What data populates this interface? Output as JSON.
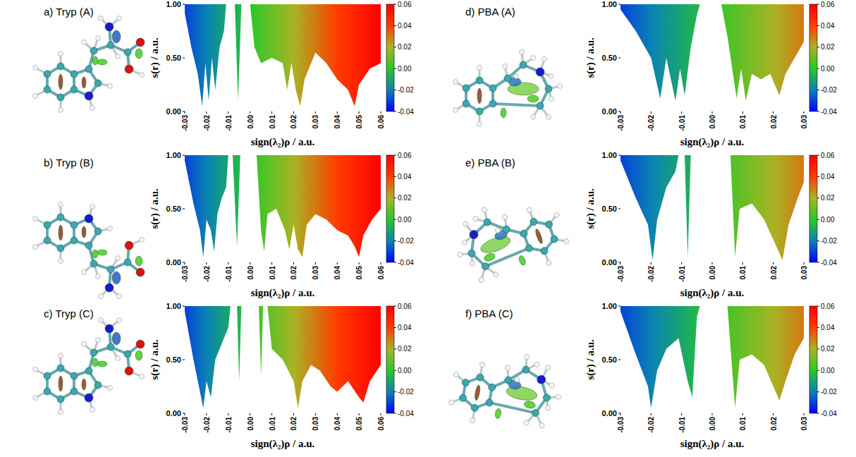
{
  "chart_data": [
    {
      "type": "area",
      "title": "a) Tryp (A)",
      "x_label": "sign(λ₂)ρ / a.u.",
      "y_label": "s(r) / a.u.",
      "x": [
        -0.03,
        -0.027,
        -0.024,
        -0.022,
        -0.0205,
        -0.019,
        -0.0175,
        -0.016,
        -0.014,
        -0.012,
        -0.011,
        -0.007,
        -0.0055,
        -0.004,
        0.0,
        0.002,
        0.005,
        0.01,
        0.015,
        0.017,
        0.019,
        0.021,
        0.023,
        0.025,
        0.03,
        0.035,
        0.04,
        0.045,
        0.048,
        0.05,
        0.055,
        0.06
      ],
      "values": [
        0.92,
        0.6,
        0.35,
        0.05,
        0.45,
        0.1,
        0.5,
        0.2,
        0.6,
        0.75,
        1.0,
        1.0,
        0.1,
        1.0,
        1.0,
        0.6,
        0.45,
        0.5,
        0.45,
        0.2,
        0.45,
        0.2,
        0.05,
        0.3,
        0.55,
        0.45,
        0.3,
        0.2,
        0.05,
        0.25,
        0.4,
        0.45
      ],
      "xlim": [
        -0.03,
        0.06
      ],
      "xticks": [
        -0.03,
        -0.02,
        -0.01,
        {
          "value": 0,
          "label": "0.00"
        },
        0.01,
        0.02,
        0.03,
        0.04,
        0.05,
        0.06
      ],
      "ylim": [
        0,
        1
      ],
      "yticks": [
        {
          "value": 0,
          "label": "0.00"
        },
        {
          "value": 0.5,
          "label": "0.50"
        },
        {
          "value": 1,
          "label": "1.00"
        }
      ],
      "colorbar": {
        "range": [
          -0.04,
          0.06
        ],
        "ticks": [
          -0.04,
          -0.02,
          {
            "value": 0,
            "label": "0.00"
          },
          0.02,
          0.04,
          0.06
        ]
      }
    },
    {
      "type": "area",
      "title": "b) Tryp (B)",
      "x_label": "sign(λ₂)ρ / a.u.",
      "y_label": "s(r) / a.u.",
      "x": [
        -0.03,
        -0.026,
        -0.023,
        -0.0215,
        -0.02,
        -0.018,
        -0.0165,
        -0.015,
        -0.013,
        -0.011,
        -0.01,
        -0.008,
        -0.006,
        -0.0045,
        0.003,
        0.005,
        0.0065,
        0.008,
        0.012,
        0.016,
        0.018,
        0.02,
        0.022,
        0.024,
        0.026,
        0.03,
        0.035,
        0.04,
        0.045,
        0.048,
        0.05,
        0.052,
        0.056,
        0.06
      ],
      "values": [
        0.95,
        0.55,
        0.3,
        0.05,
        0.4,
        0.3,
        0.1,
        0.45,
        0.6,
        0.7,
        1.0,
        1.0,
        0.15,
        1.0,
        1.0,
        0.3,
        0.1,
        0.45,
        0.5,
        0.3,
        0.12,
        0.35,
        0.12,
        0.05,
        0.35,
        0.45,
        0.4,
        0.3,
        0.25,
        0.15,
        0.05,
        0.25,
        0.4,
        0.5
      ],
      "xlim": [
        -0.03,
        0.06
      ],
      "xticks": [
        -0.03,
        -0.02,
        -0.01,
        {
          "value": 0,
          "label": "0.00"
        },
        0.01,
        0.02,
        0.03,
        0.04,
        0.05,
        0.06
      ],
      "ylim": [
        0,
        1
      ],
      "yticks": [
        {
          "value": 0,
          "label": "0.00"
        },
        {
          "value": 0.5,
          "label": "0.50"
        },
        {
          "value": 1,
          "label": "1.00"
        }
      ],
      "colorbar": {
        "range": [
          -0.04,
          0.06
        ],
        "ticks": [
          -0.04,
          -0.02,
          {
            "value": 0,
            "label": "0.00"
          },
          0.02,
          0.04,
          0.06
        ]
      }
    },
    {
      "type": "area",
      "title": "c) Tryp (C)",
      "x_label": "sign(λ₂)ρ / a.u.",
      "y_label": "s(r) / a.u.",
      "x": [
        -0.03,
        -0.026,
        -0.023,
        -0.0215,
        -0.02,
        -0.018,
        -0.016,
        -0.013,
        -0.01,
        -0.009,
        -0.006,
        -0.005,
        -0.004,
        0.004,
        0.005,
        0.006,
        0.008,
        0.01,
        0.015,
        0.02,
        0.022,
        0.024,
        0.028,
        0.032,
        0.037,
        0.04,
        0.045,
        0.05,
        0.052,
        0.055,
        0.06
      ],
      "values": [
        0.95,
        0.5,
        0.2,
        0.05,
        0.3,
        0.15,
        0.5,
        0.65,
        0.8,
        1.0,
        1.0,
        0.3,
        1.0,
        1.0,
        0.35,
        1.0,
        1.0,
        0.6,
        0.5,
        0.3,
        0.05,
        0.3,
        0.45,
        0.4,
        0.25,
        0.2,
        0.3,
        0.15,
        0.1,
        0.3,
        0.45
      ],
      "xlim": [
        -0.03,
        0.06
      ],
      "xticks": [
        -0.03,
        -0.02,
        -0.01,
        {
          "value": 0,
          "label": "0.00"
        },
        0.01,
        0.02,
        0.03,
        0.04,
        0.05,
        0.06
      ],
      "ylim": [
        0,
        1
      ],
      "yticks": [
        {
          "value": 0,
          "label": "0.00"
        },
        {
          "value": 0.5,
          "label": "0.50"
        },
        {
          "value": 1,
          "label": "1.00"
        }
      ],
      "colorbar": {
        "range": [
          -0.04,
          0.06
        ],
        "ticks": [
          -0.04,
          -0.02,
          {
            "value": 0,
            "label": "0.00"
          },
          0.02,
          0.04,
          0.06
        ]
      }
    },
    {
      "type": "area",
      "title": "d) PBA (A)",
      "x_label": "sign(λ₂)ρ / a.u.",
      "y_label": "s(r) / a.u.",
      "x": [
        -0.03,
        -0.025,
        -0.02,
        -0.017,
        -0.015,
        -0.012,
        -0.0105,
        -0.009,
        -0.007,
        -0.005,
        -0.004,
        0.003,
        0.005,
        0.008,
        0.0095,
        0.011,
        0.013,
        0.016,
        0.019,
        0.022,
        0.024,
        0.027,
        0.03
      ],
      "values": [
        0.95,
        0.75,
        0.5,
        0.12,
        0.5,
        0.1,
        0.4,
        0.15,
        0.6,
        0.9,
        1.0,
        1.0,
        0.7,
        0.12,
        0.4,
        0.1,
        0.35,
        0.3,
        0.35,
        0.15,
        0.35,
        0.5,
        0.65
      ],
      "xlim": [
        -0.03,
        0.03
      ],
      "xticks": [
        -0.03,
        -0.02,
        -0.01,
        {
          "value": 0,
          "label": "0.00"
        },
        0.01,
        0.02,
        0.03
      ],
      "ylim": [
        0,
        1
      ],
      "yticks": [
        {
          "value": 0,
          "label": "0.00"
        },
        {
          "value": 0.5,
          "label": "0.50"
        },
        {
          "value": 1,
          "label": "1.00"
        }
      ],
      "colorbar": {
        "range": [
          -0.04,
          0.06
        ],
        "ticks": [
          -0.04,
          -0.02,
          {
            "value": 0,
            "label": "0.00"
          },
          0.02,
          0.04,
          0.06
        ]
      }
    },
    {
      "type": "area",
      "title": "e) PBA (B)",
      "x_label": "sign(λ₂)ρ / a.u.",
      "y_label": "s(r) / a.u.",
      "x": [
        -0.03,
        -0.025,
        -0.021,
        -0.0195,
        -0.018,
        -0.015,
        -0.012,
        -0.011,
        -0.009,
        -0.008,
        -0.007,
        0.006,
        0.0075,
        0.009,
        0.013,
        0.017,
        0.021,
        0.023,
        0.025,
        0.028,
        0.03
      ],
      "values": [
        0.95,
        0.6,
        0.35,
        0.02,
        0.4,
        0.7,
        0.85,
        1.0,
        1.0,
        0.05,
        1.0,
        1.0,
        0.05,
        0.5,
        0.55,
        0.4,
        0.15,
        0.02,
        0.35,
        0.6,
        0.75
      ],
      "xlim": [
        -0.03,
        0.03
      ],
      "xticks": [
        -0.03,
        -0.02,
        -0.01,
        {
          "value": 0,
          "label": "0.00"
        },
        0.01,
        0.02,
        0.03
      ],
      "ylim": [
        0,
        1
      ],
      "yticks": [
        {
          "value": 0,
          "label": "0.00"
        },
        {
          "value": 0.5,
          "label": "0.50"
        },
        {
          "value": 1,
          "label": "1.00"
        }
      ],
      "colorbar": {
        "range": [
          -0.04,
          0.06
        ],
        "ticks": [
          -0.04,
          -0.02,
          {
            "value": 0,
            "label": "0.00"
          },
          0.02,
          0.04,
          0.06
        ]
      }
    },
    {
      "type": "area",
      "title": "f) PBA (C)",
      "x_label": "sign(λ₂)ρ / a.u.",
      "y_label": "s(r) / a.u.",
      "x": [
        -0.03,
        -0.025,
        -0.021,
        -0.02,
        -0.018,
        -0.015,
        -0.011,
        -0.008,
        -0.0065,
        -0.005,
        -0.004,
        0.005,
        0.0075,
        0.009,
        0.013,
        0.017,
        0.02,
        0.022,
        0.024,
        0.027,
        0.03
      ],
      "values": [
        0.95,
        0.55,
        0.25,
        0.05,
        0.4,
        0.6,
        0.7,
        0.3,
        0.15,
        0.9,
        1.0,
        1.0,
        0.05,
        0.5,
        0.55,
        0.45,
        0.25,
        0.12,
        0.3,
        0.55,
        0.7
      ],
      "xlim": [
        -0.03,
        0.03
      ],
      "xticks": [
        -0.03,
        -0.02,
        -0.01,
        {
          "value": 0,
          "label": "0.00"
        },
        0.01,
        0.02,
        0.03
      ],
      "ylim": [
        0,
        1
      ],
      "yticks": [
        {
          "value": 0,
          "label": "0.00"
        },
        {
          "value": 0.5,
          "label": "0.50"
        },
        {
          "value": 1,
          "label": "1.00"
        }
      ],
      "colorbar": {
        "range": [
          -0.04,
          0.06
        ],
        "ticks": [
          -0.04,
          -0.02,
          {
            "value": 0,
            "label": "0.00"
          },
          0.02,
          0.04,
          0.06
        ]
      }
    }
  ]
}
